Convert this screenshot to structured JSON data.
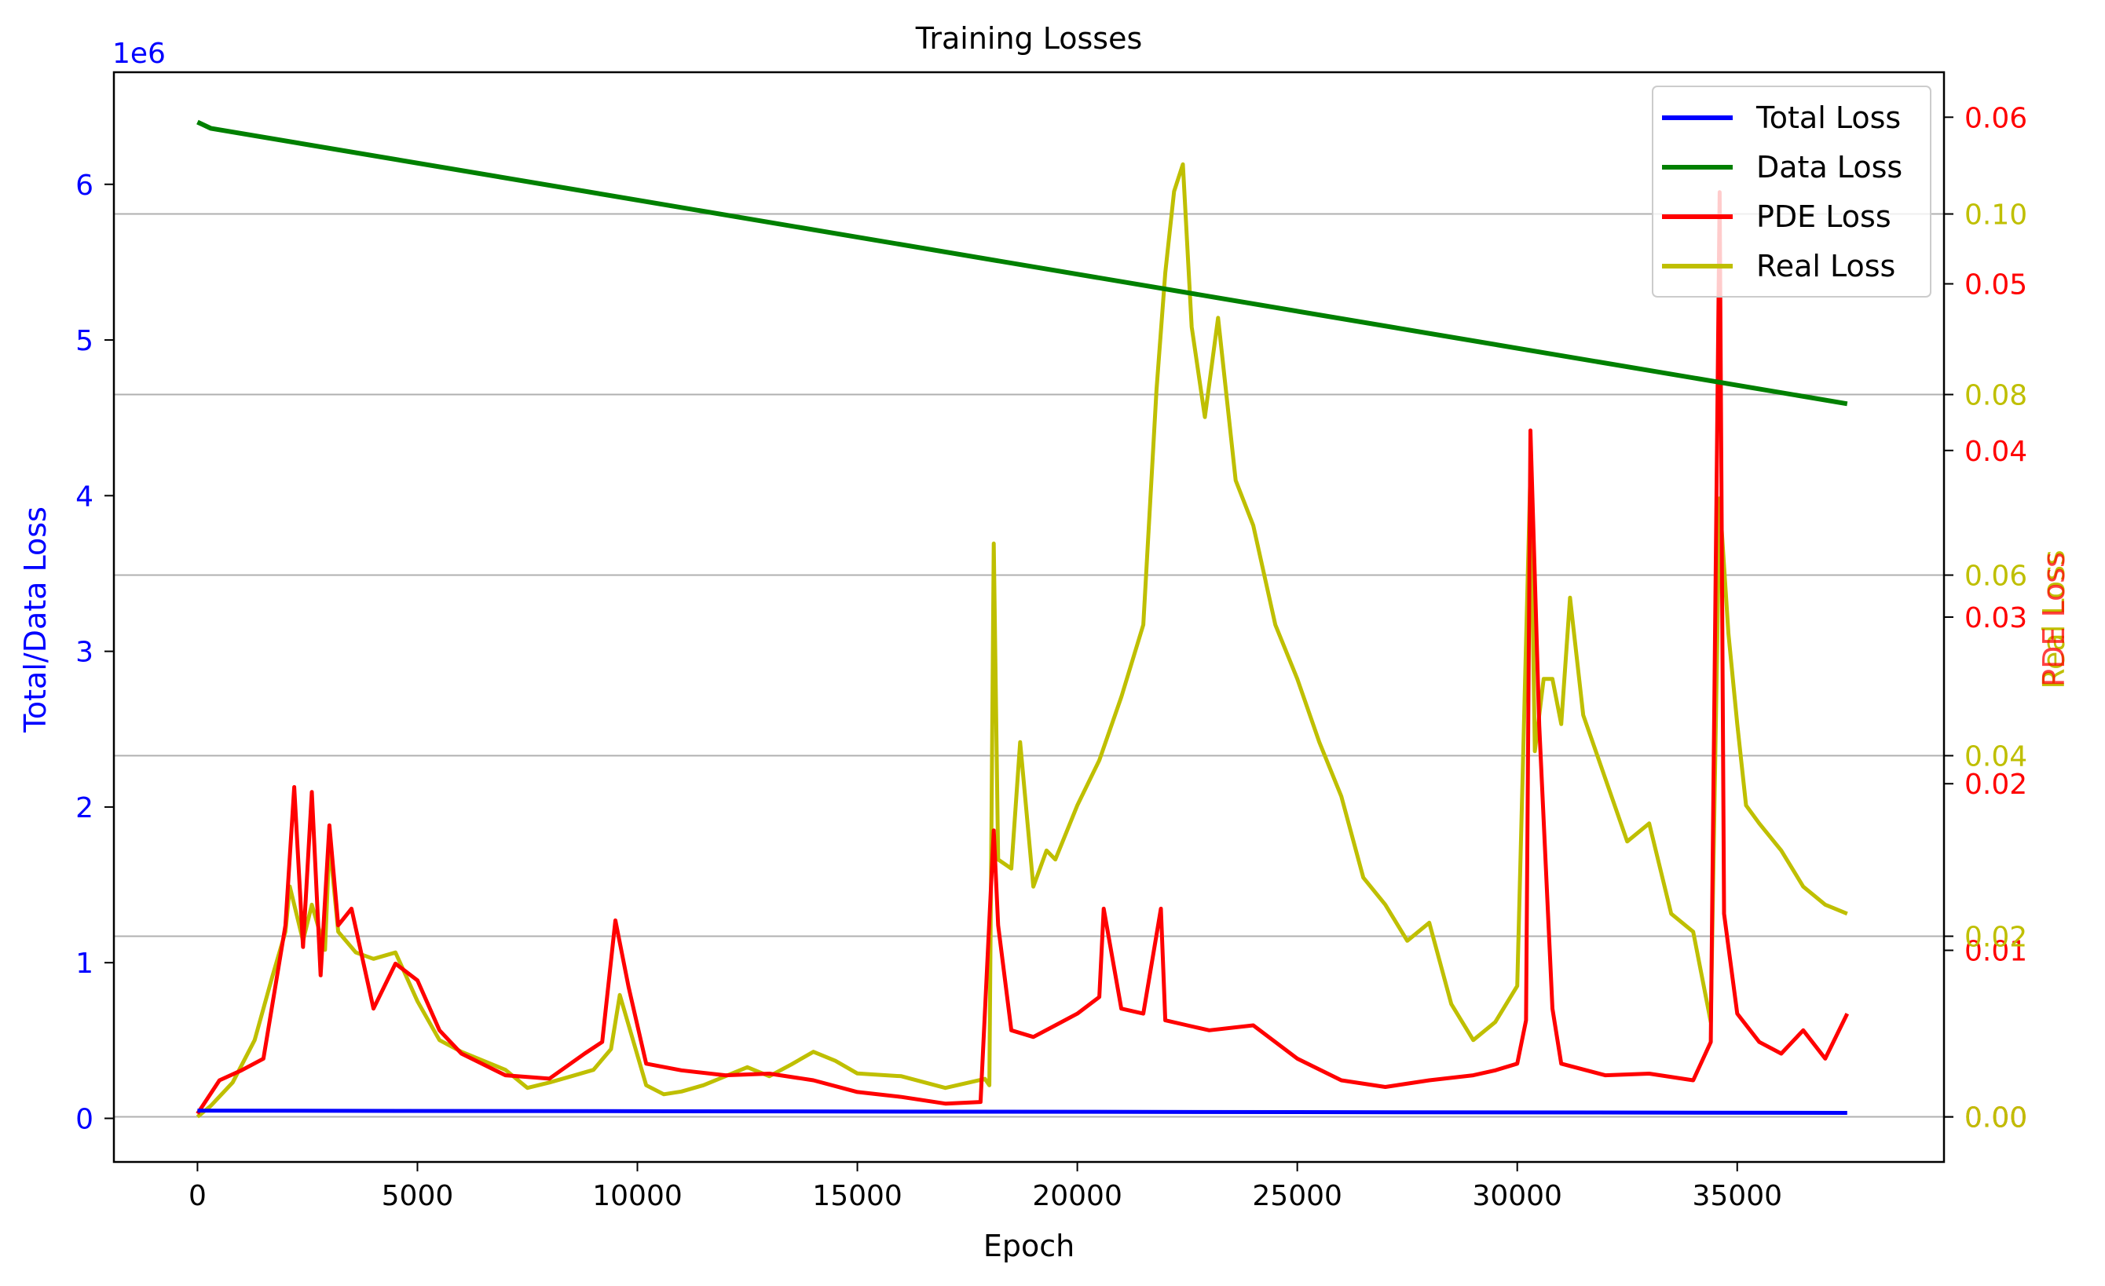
{
  "chart_data": {
    "type": "line",
    "title": "Training Losses",
    "xlabel": "Epoch",
    "ylabel_left": "Total/Data Loss",
    "ylabel_right_pde": "PDE Loss",
    "ylabel_right_real": "Real Loss",
    "left_offset_text": "1e6",
    "xlim": [
      -1900,
      39700
    ],
    "x_ticks": [
      0,
      5000,
      10000,
      15000,
      20000,
      25000,
      30000,
      35000
    ],
    "y_left_lim": [
      -0.28,
      6.72
    ],
    "y_left_ticks": [
      0,
      1,
      2,
      3,
      4,
      5,
      6
    ],
    "y_pde_lim": [
      -0.0027,
      0.0627
    ],
    "y_pde_ticks": [
      "0.00",
      "0.01",
      "0.02",
      "0.03",
      "0.04",
      "0.05",
      "0.06"
    ],
    "y_real_lim": [
      -0.005,
      0.1157
    ],
    "y_real_ticks": [
      "0.00",
      "0.02",
      "0.04",
      "0.06",
      "0.08",
      "0.10"
    ],
    "grid": "horizontal lines at Real Loss ticks",
    "legend_position": "top-right",
    "colors": {
      "total": "#0000ff",
      "data": "#008000",
      "pde": "#ff0000",
      "real": "#bfbf00",
      "left_axis": "#0000ff",
      "pde_axis": "#ff0000",
      "real_axis": "#bfbf00",
      "grid": "#b0b0b0"
    },
    "series": [
      {
        "name": "Total Loss",
        "axis": "left",
        "color": "#0000ff",
        "x": [
          0,
          37500
        ],
        "y": [
          0.05,
          0.035
        ]
      },
      {
        "name": "Data Loss",
        "axis": "left",
        "color": "#008000",
        "x": [
          0,
          300,
          37500
        ],
        "y": [
          6.4,
          6.36,
          4.59
        ]
      },
      {
        "name": "PDE Loss",
        "axis": "pde",
        "color": "#ff0000",
        "x": [
          0,
          500,
          1000,
          1500,
          2000,
          2200,
          2400,
          2600,
          2800,
          3000,
          3200,
          3500,
          4000,
          4500,
          5000,
          5500,
          6000,
          7000,
          8000,
          8800,
          9200,
          9500,
          9800,
          10200,
          11000,
          12000,
          13000,
          14000,
          15000,
          16000,
          17000,
          17800,
          18100,
          18200,
          18500,
          19000,
          19500,
          20000,
          20500,
          20600,
          21000,
          21500,
          21900,
          22000,
          22500,
          23000,
          24000,
          25000,
          26000,
          27000,
          28000,
          29000,
          29500,
          30000,
          30200,
          30300,
          30500,
          30800,
          31000,
          32000,
          33000,
          34000,
          34400,
          34600,
          34700,
          35000,
          35500,
          36000,
          36500,
          37000,
          37500
        ],
        "y": [
          0.0002,
          0.0022,
          0.0028,
          0.0035,
          0.0115,
          0.0198,
          0.0102,
          0.0195,
          0.0085,
          0.0175,
          0.0115,
          0.0125,
          0.0065,
          0.0092,
          0.0082,
          0.0052,
          0.0038,
          0.0025,
          0.0023,
          0.0038,
          0.0045,
          0.0118,
          0.0078,
          0.0032,
          0.0028,
          0.0025,
          0.0026,
          0.0022,
          0.0015,
          0.0012,
          0.0008,
          0.0009,
          0.0172,
          0.0115,
          0.0052,
          0.0048,
          0.0055,
          0.0062,
          0.0072,
          0.0125,
          0.0065,
          0.0062,
          0.0125,
          0.0058,
          0.0055,
          0.0052,
          0.0055,
          0.0035,
          0.0022,
          0.0018,
          0.0022,
          0.0025,
          0.0028,
          0.0032,
          0.0058,
          0.0412,
          0.0235,
          0.0065,
          0.0032,
          0.0025,
          0.0026,
          0.0022,
          0.0045,
          0.0555,
          0.0122,
          0.0062,
          0.0045,
          0.0038,
          0.0052,
          0.0035,
          0.0062
        ]
      },
      {
        "name": "Real Loss",
        "axis": "real",
        "color": "#bfbf00",
        "x": [
          0,
          300,
          800,
          1300,
          1700,
          2000,
          2100,
          2400,
          2600,
          2900,
          3000,
          3200,
          3600,
          4000,
          4500,
          5000,
          5500,
          6000,
          6500,
          7000,
          7500,
          8000,
          8500,
          9000,
          9400,
          9600,
          9900,
          10200,
          10600,
          11000,
          11500,
          12000,
          12500,
          13000,
          13500,
          14000,
          14500,
          15000,
          16000,
          17000,
          17900,
          18000,
          18100,
          18200,
          18500,
          18700,
          19000,
          19300,
          19500,
          20000,
          20500,
          21000,
          21500,
          21800,
          22000,
          22200,
          22400,
          22600,
          22900,
          23200,
          23600,
          24000,
          24500,
          25000,
          25500,
          26000,
          26500,
          27000,
          27500,
          28000,
          28500,
          29000,
          29500,
          30000,
          30300,
          30400,
          30600,
          30800,
          31000,
          31200,
          31500,
          32000,
          32500,
          33000,
          33500,
          34000,
          34200,
          34400,
          34600,
          34800,
          35000,
          35200,
          35500,
          36000,
          36500,
          37000,
          37500
        ],
        "y": [
          0.0,
          0.0012,
          0.0038,
          0.0085,
          0.0155,
          0.0205,
          0.0255,
          0.0195,
          0.0235,
          0.0185,
          0.0305,
          0.0205,
          0.0182,
          0.0175,
          0.0182,
          0.0128,
          0.0085,
          0.0072,
          0.0062,
          0.0052,
          0.0032,
          0.0038,
          0.0045,
          0.0052,
          0.0075,
          0.0135,
          0.0085,
          0.0035,
          0.0025,
          0.0028,
          0.0035,
          0.0045,
          0.0055,
          0.0045,
          0.0058,
          0.0072,
          0.0062,
          0.0048,
          0.0045,
          0.0032,
          0.0042,
          0.0035,
          0.0635,
          0.0285,
          0.0275,
          0.0415,
          0.0255,
          0.0295,
          0.0285,
          0.0345,
          0.0395,
          0.0465,
          0.0545,
          0.0805,
          0.0935,
          0.1025,
          0.1055,
          0.0875,
          0.0775,
          0.0885,
          0.0705,
          0.0655,
          0.0545,
          0.0485,
          0.0415,
          0.0355,
          0.0265,
          0.0235,
          0.0195,
          0.0215,
          0.0125,
          0.0085,
          0.0105,
          0.0145,
          0.0715,
          0.0405,
          0.0485,
          0.0485,
          0.0435,
          0.0575,
          0.0445,
          0.0375,
          0.0305,
          0.0325,
          0.0225,
          0.0205,
          0.0155,
          0.0105,
          0.0685,
          0.0535,
          0.0435,
          0.0345,
          0.0325,
          0.0295,
          0.0255,
          0.0235,
          0.0225
        ]
      }
    ]
  }
}
